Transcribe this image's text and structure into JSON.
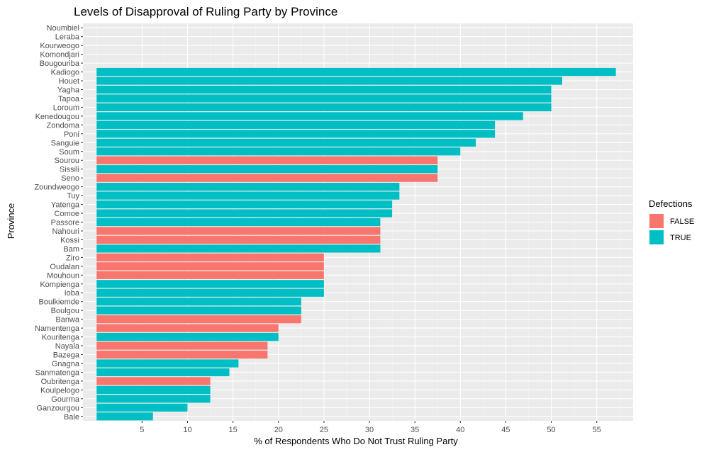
{
  "chart_data": {
    "type": "bar",
    "orientation": "horizontal",
    "title": "Levels of Disapproval of Ruling Party by Province",
    "xlabel": "% of Respondents Who Do Not Trust Ruling Party",
    "ylabel": "Province",
    "xlim": [
      -1.5,
      59
    ],
    "xticks": [
      5,
      10,
      15,
      20,
      25,
      30,
      35,
      40,
      45,
      50,
      55
    ],
    "grid": true,
    "legend": {
      "title": "Defections",
      "position": "right",
      "entries": [
        {
          "label": "FALSE",
          "color": "#F8766D"
        },
        {
          "label": "TRUE",
          "color": "#00BFC4"
        }
      ]
    },
    "bars": [
      {
        "category": "Noumbiel",
        "value": null,
        "group": null
      },
      {
        "category": "Leraba",
        "value": null,
        "group": null
      },
      {
        "category": "Kourweogo",
        "value": null,
        "group": null
      },
      {
        "category": "Komondjari",
        "value": null,
        "group": null
      },
      {
        "category": "Bougouriba",
        "value": null,
        "group": null
      },
      {
        "category": "Kadiogo",
        "value": 57.1,
        "group": "TRUE"
      },
      {
        "category": "Houet",
        "value": 51.2,
        "group": "TRUE"
      },
      {
        "category": "Yagha",
        "value": 50.0,
        "group": "TRUE"
      },
      {
        "category": "Tapoa",
        "value": 50.0,
        "group": "TRUE"
      },
      {
        "category": "Loroum",
        "value": 50.0,
        "group": "TRUE"
      },
      {
        "category": "Kenedougou",
        "value": 46.9,
        "group": "TRUE"
      },
      {
        "category": "Zondoma",
        "value": 43.8,
        "group": "TRUE"
      },
      {
        "category": "Poni",
        "value": 43.8,
        "group": "TRUE"
      },
      {
        "category": "Sanguie",
        "value": 41.7,
        "group": "TRUE"
      },
      {
        "category": "Soum",
        "value": 40.0,
        "group": "TRUE"
      },
      {
        "category": "Sourou",
        "value": 37.5,
        "group": "FALSE"
      },
      {
        "category": "Sissili",
        "value": 37.5,
        "group": "TRUE"
      },
      {
        "category": "Seno",
        "value": 37.5,
        "group": "FALSE"
      },
      {
        "category": "Zoundweogo",
        "value": 33.3,
        "group": "TRUE"
      },
      {
        "category": "Tuy",
        "value": 33.3,
        "group": "TRUE"
      },
      {
        "category": "Yatenga",
        "value": 32.5,
        "group": "TRUE"
      },
      {
        "category": "Comoe",
        "value": 32.5,
        "group": "TRUE"
      },
      {
        "category": "Passore",
        "value": 31.2,
        "group": "TRUE"
      },
      {
        "category": "Nahouri",
        "value": 31.2,
        "group": "FALSE"
      },
      {
        "category": "Kossi",
        "value": 31.2,
        "group": "FALSE"
      },
      {
        "category": "Bam",
        "value": 31.2,
        "group": "TRUE"
      },
      {
        "category": "Ziro",
        "value": 25.0,
        "group": "FALSE"
      },
      {
        "category": "Oudalan",
        "value": 25.0,
        "group": "FALSE"
      },
      {
        "category": "Mouhoun",
        "value": 25.0,
        "group": "FALSE"
      },
      {
        "category": "Kompienga",
        "value": 25.0,
        "group": "TRUE"
      },
      {
        "category": "Ioba",
        "value": 25.0,
        "group": "TRUE"
      },
      {
        "category": "Boulkiemde",
        "value": 22.5,
        "group": "TRUE"
      },
      {
        "category": "Boulgou",
        "value": 22.5,
        "group": "TRUE"
      },
      {
        "category": "Banwa",
        "value": 22.5,
        "group": "FALSE"
      },
      {
        "category": "Namentenga",
        "value": 20.0,
        "group": "FALSE"
      },
      {
        "category": "Kouritenga",
        "value": 20.0,
        "group": "TRUE"
      },
      {
        "category": "Nayala",
        "value": 18.8,
        "group": "FALSE"
      },
      {
        "category": "Bazega",
        "value": 18.8,
        "group": "FALSE"
      },
      {
        "category": "Gnagna",
        "value": 15.6,
        "group": "TRUE"
      },
      {
        "category": "Sanmatenga",
        "value": 14.6,
        "group": "TRUE"
      },
      {
        "category": "Oubritenga",
        "value": 12.5,
        "group": "FALSE"
      },
      {
        "category": "Koulpelogo",
        "value": 12.5,
        "group": "TRUE"
      },
      {
        "category": "Gourma",
        "value": 12.5,
        "group": "TRUE"
      },
      {
        "category": "Ganzourgou",
        "value": 10.0,
        "group": "TRUE"
      },
      {
        "category": "Bale",
        "value": 6.2,
        "group": "TRUE"
      }
    ]
  },
  "colors": {
    "panel_background": "#EBEBEB",
    "grid_major": "#FFFFFF",
    "grid_minor": "#F5F5F5",
    "tick_text": "#4D4D4D"
  }
}
